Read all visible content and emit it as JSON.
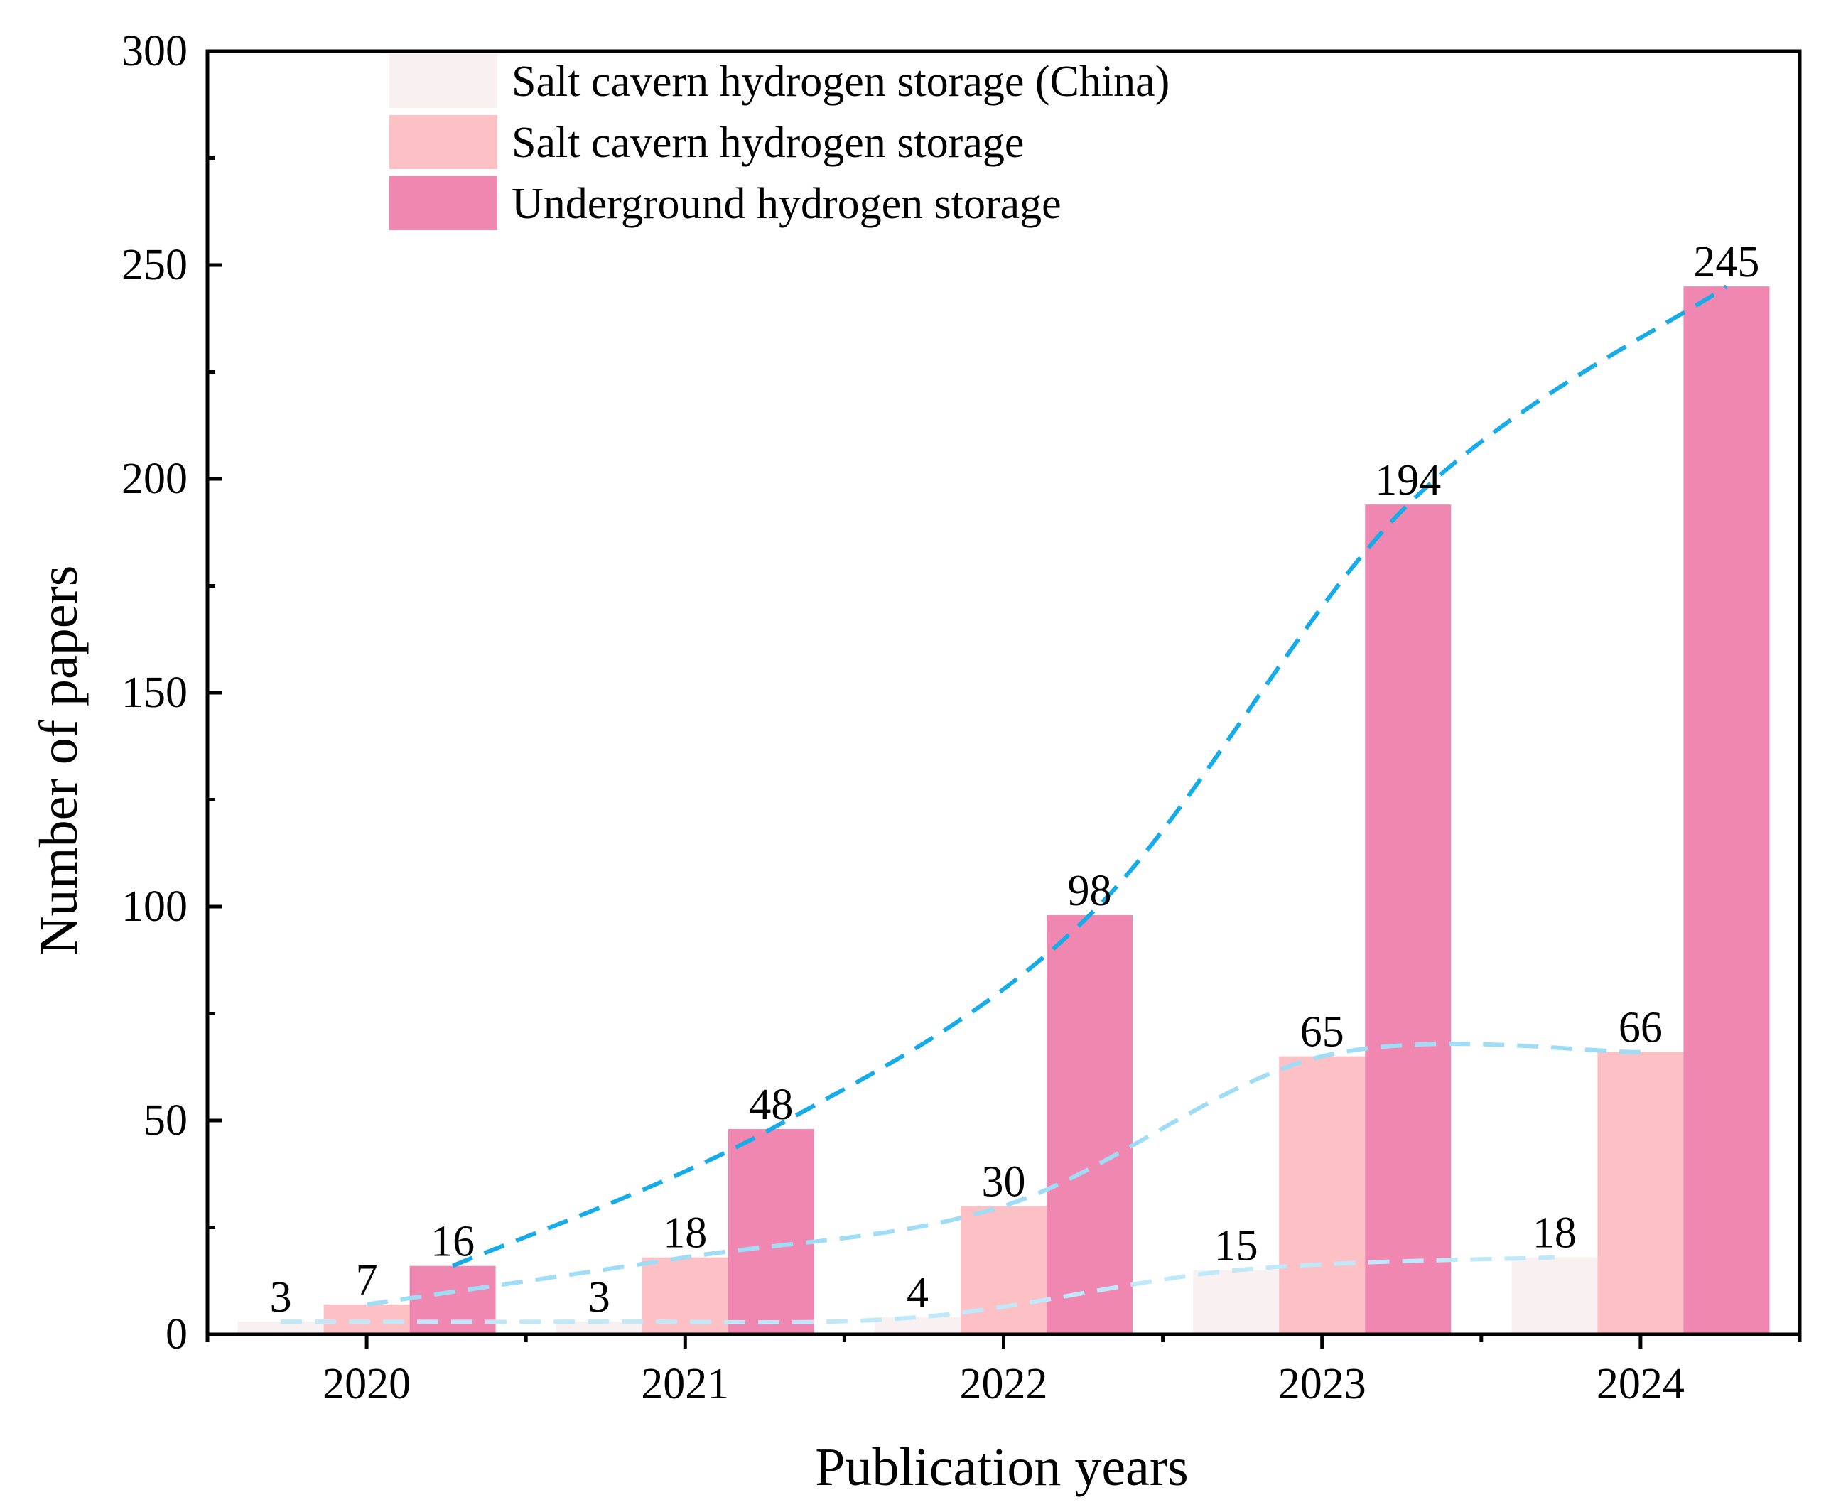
{
  "chart_data": {
    "type": "bar",
    "title": "",
    "xlabel": "Publication years",
    "ylabel": "Number of papers",
    "ylim": [
      0,
      300
    ],
    "yticks": [
      "0",
      "50",
      "100",
      "150",
      "200",
      "250",
      "300"
    ],
    "categories": [
      "2020",
      "2021",
      "2022",
      "2023",
      "2024"
    ],
    "series": [
      {
        "name": "Salt cavern hydrogen storage (China)",
        "color": "#f9f1f1",
        "trend_color": "#bfe8fa",
        "values": [
          3,
          3,
          4,
          15,
          18
        ],
        "labels": [
          "3",
          "3",
          "4",
          "15",
          "18"
        ]
      },
      {
        "name": "Salt cavern hydrogen storage",
        "color": "#fcc0c5",
        "trend_color": "#9fdcf6",
        "values": [
          7,
          18,
          30,
          65,
          66
        ],
        "labels": [
          "7",
          "18",
          "30",
          "65",
          "66"
        ]
      },
      {
        "name": "Underground hydrogen storage",
        "color": "#f087b1",
        "trend_color": "#17ace8",
        "values": [
          16,
          48,
          98,
          194,
          245
        ],
        "labels": [
          "16",
          "48",
          "98",
          "194",
          "245"
        ]
      }
    ],
    "trend_lines": "dashed",
    "legend_position": "top-left",
    "grid": false
  }
}
